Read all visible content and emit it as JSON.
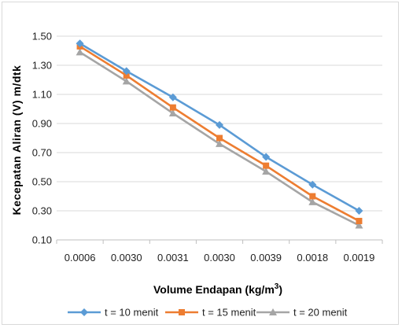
{
  "chart_data": {
    "type": "line",
    "title": "",
    "xlabel": "Volume Endapan (kg/m³)",
    "xlabel_main": "Volume Endapan (kg/m",
    "xlabel_sup": "3",
    "xlabel_close": ")",
    "ylabel": "Kecepatan Aliran (V) m/dtk",
    "ylim": [
      0.1,
      1.5
    ],
    "yticks": [
      "1.50",
      "1.30",
      "1.10",
      "0.90",
      "0.70",
      "0.50",
      "0.30",
      "0.10"
    ],
    "ytick_values": [
      1.5,
      1.3,
      1.1,
      0.9,
      0.7,
      0.5,
      0.3,
      0.1
    ],
    "categories": [
      "0.0006",
      "0.0030",
      "0.0031",
      "0.0030",
      "0.0039",
      "0.0018",
      "0.0019"
    ],
    "grid": true,
    "legend_position": "bottom",
    "series": [
      {
        "name": "t = 10 menit",
        "color": "#5b9bd5",
        "marker": "diamond",
        "values": [
          1.45,
          1.26,
          1.08,
          0.89,
          0.67,
          0.48,
          0.3
        ]
      },
      {
        "name": "t = 15 menit",
        "color": "#ed7d31",
        "marker": "square",
        "values": [
          1.43,
          1.23,
          1.01,
          0.8,
          0.61,
          0.4,
          0.23
        ]
      },
      {
        "name": "t = 20 menit",
        "color": "#a5a5a5",
        "marker": "triangle",
        "values": [
          1.39,
          1.19,
          0.97,
          0.76,
          0.57,
          0.36,
          0.2
        ]
      }
    ]
  }
}
